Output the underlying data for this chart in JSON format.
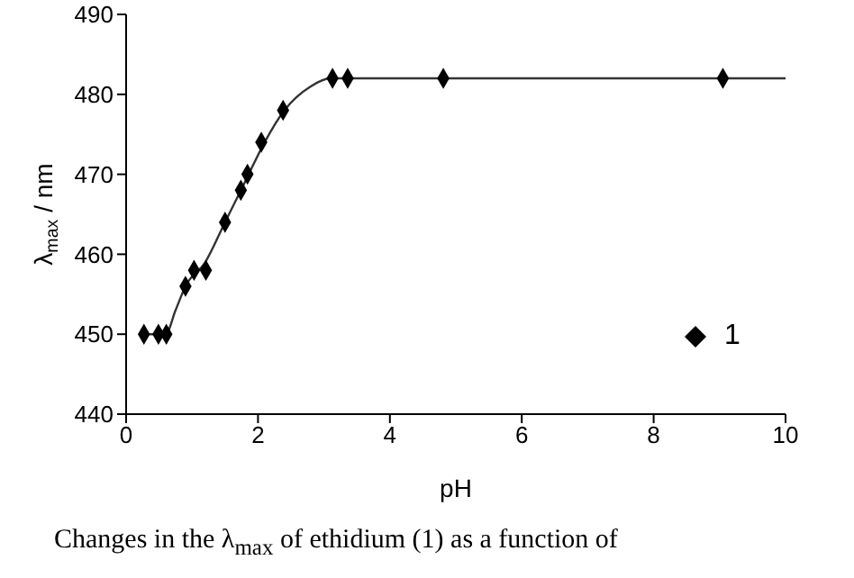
{
  "chart_data": {
    "type": "scatter",
    "xlabel": "pH",
    "ylabel": "λ$_{max}$ / nm",
    "xlim": [
      0,
      10
    ],
    "ylim": [
      440,
      490
    ],
    "xticks": [
      0,
      2,
      4,
      6,
      8,
      10
    ],
    "yticks": [
      440,
      450,
      460,
      470,
      480,
      490
    ],
    "grid": false,
    "legend": "bottom right",
    "series": [
      {
        "name": "1",
        "color": "#000000",
        "marker": "diamond",
        "x": [
          0.27,
          0.49,
          0.61,
          0.9,
          1.03,
          1.21,
          1.5,
          1.74,
          1.84,
          2.05,
          2.38,
          3.13,
          3.36,
          4.81,
          9.05
        ],
        "values": [
          450,
          450,
          450,
          456,
          458,
          458,
          464,
          468,
          470,
          474,
          478,
          482,
          482,
          482,
          482
        ]
      },
      {
        "type": "line",
        "color": "#333333",
        "marker": "none",
        "x": [
          0.27,
          0.6,
          0.75,
          0.9,
          1.2,
          1.5,
          1.8,
          2.1,
          2.4,
          2.8,
          3.1,
          3.5,
          5,
          7,
          10
        ],
        "values": [
          450,
          450,
          453,
          456,
          459,
          464,
          469,
          474,
          478,
          481,
          482,
          482,
          482,
          482,
          482
        ]
      }
    ],
    "annotations": [
      "Changes in the λ$_{max}$ of ethidium (1) as a function of"
    ]
  }
}
